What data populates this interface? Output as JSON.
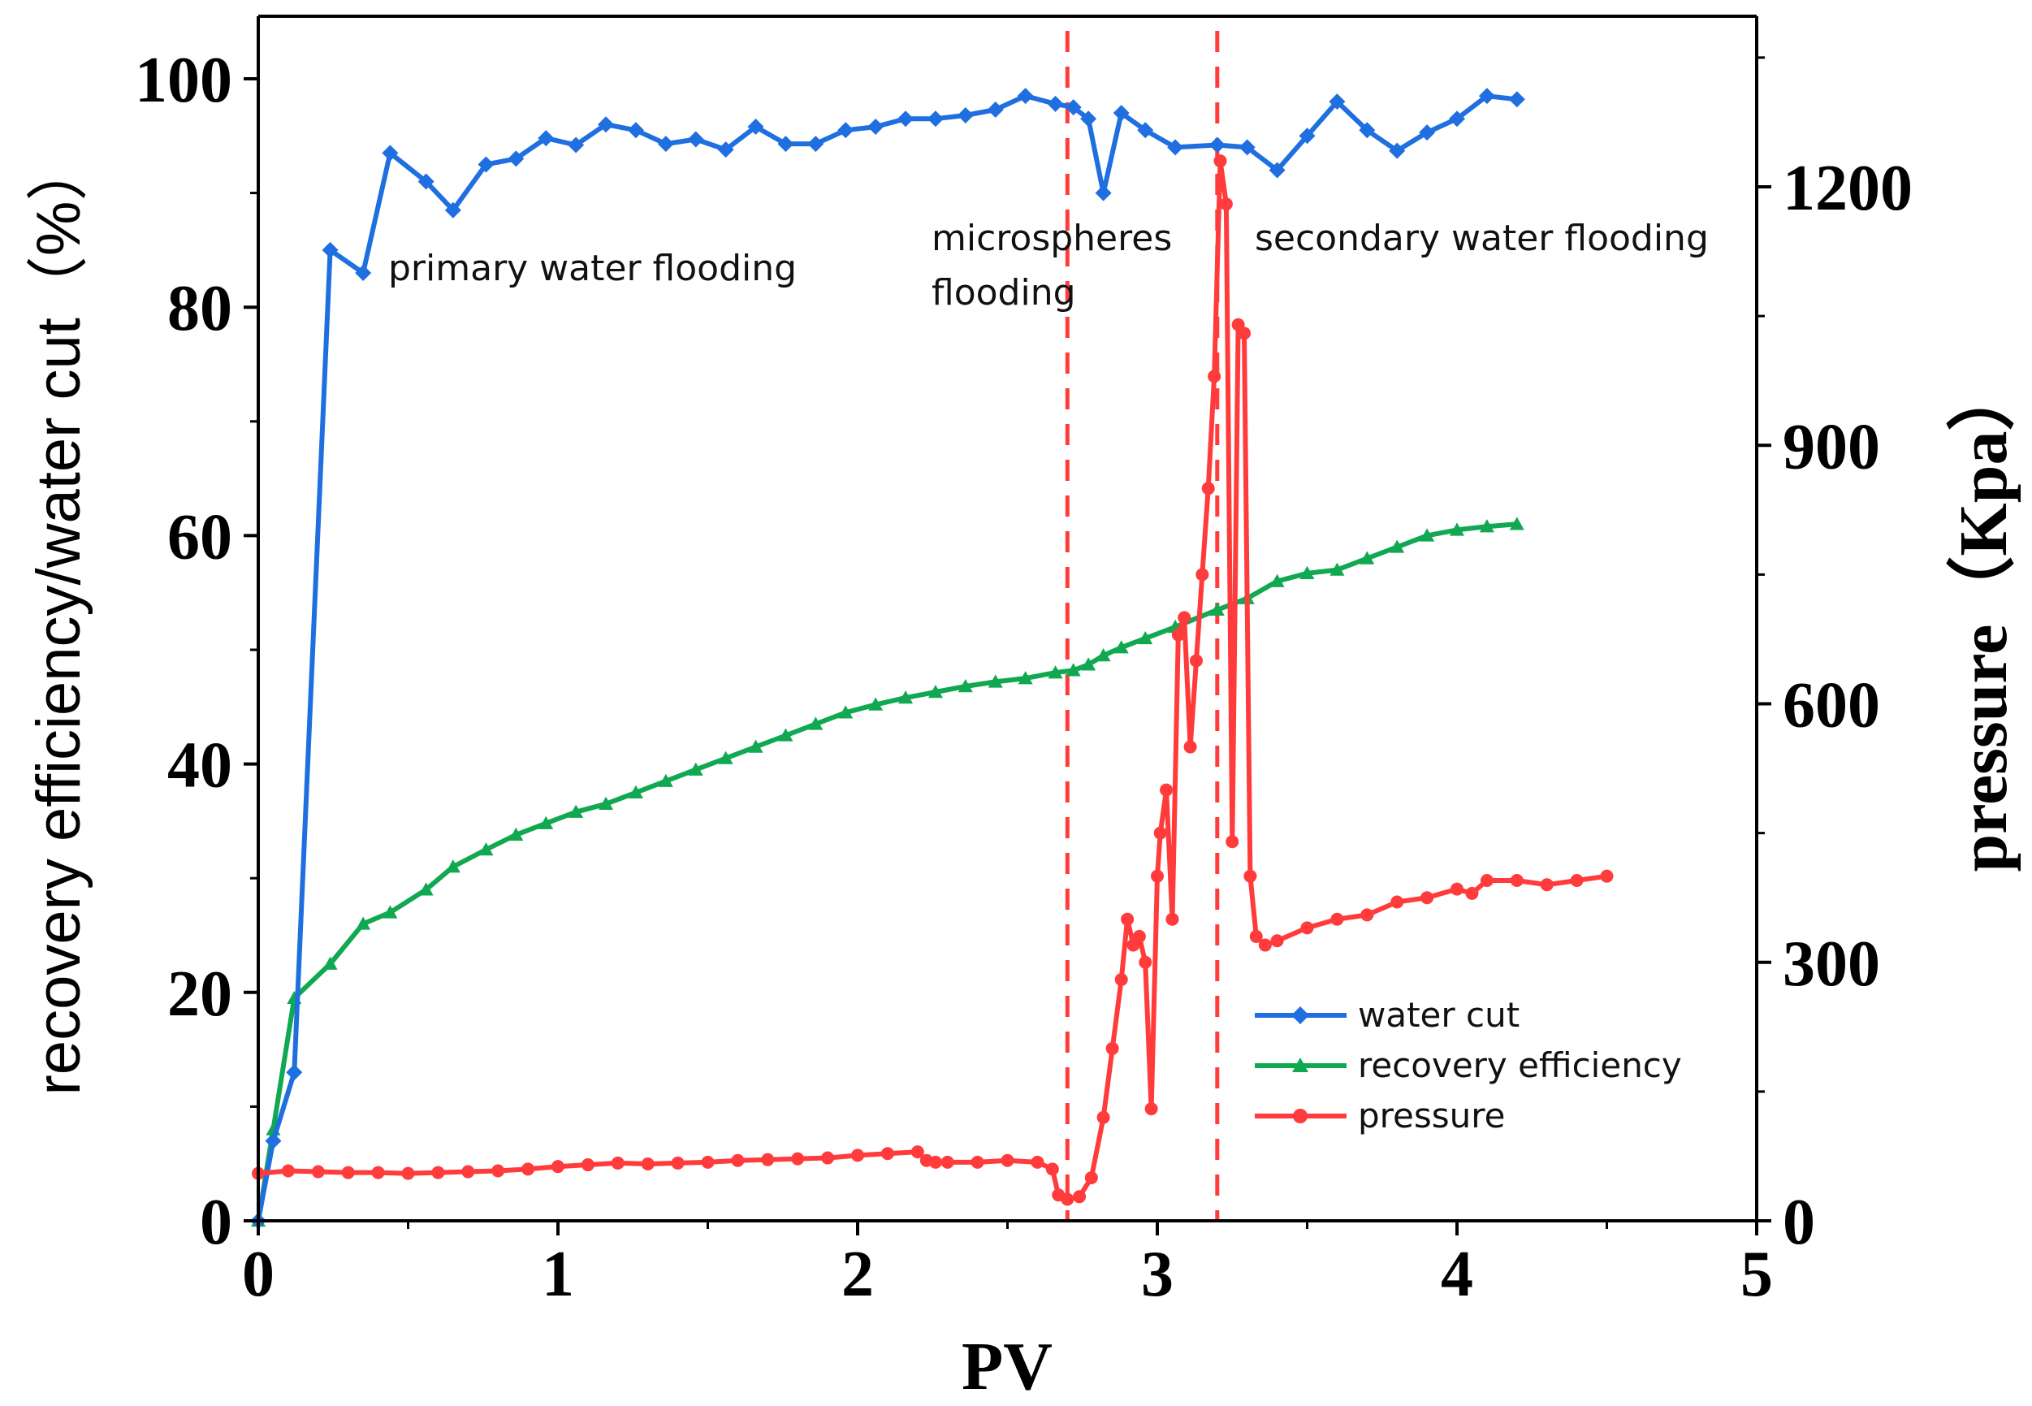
{
  "chart_data": {
    "type": "line",
    "xlabel": "PV",
    "ylabel_left": "recovery efficiency/water cut（%）",
    "ylabel_right": "pressure（Kpa）",
    "xlim": [
      0,
      5
    ],
    "ylim_left": [
      0,
      100
    ],
    "ylim_right": [
      0,
      1400
    ],
    "x_ticks": [
      "0",
      "1",
      "2",
      "3",
      "4",
      "5"
    ],
    "y_left_ticks": [
      "0",
      "20",
      "40",
      "60",
      "80",
      "100"
    ],
    "y_right_ticks": [
      "0",
      "300",
      "600",
      "900",
      "1200"
    ],
    "grid": false,
    "legend_position": "bottom-right",
    "colors": {
      "water_cut": "#1f6fe0",
      "recovery": "#10a850",
      "pressure": "#ff3b3b",
      "divider": "#ff3b3b"
    },
    "dividers": [
      2.7,
      3.2
    ],
    "annotations": [
      "primary water flooding",
      "microspheres",
      "flooding",
      "secondary water flooding"
    ],
    "series": [
      {
        "name": "water cut",
        "axis": "left",
        "marker": "diamond",
        "x": [
          0.0,
          0.05,
          0.12,
          0.24,
          0.35,
          0.44,
          0.56,
          0.65,
          0.76,
          0.86,
          0.96,
          1.06,
          1.16,
          1.26,
          1.36,
          1.46,
          1.56,
          1.66,
          1.76,
          1.86,
          1.96,
          2.06,
          2.16,
          2.26,
          2.36,
          2.46,
          2.56,
          2.66,
          2.72,
          2.77,
          2.82,
          2.88,
          2.96,
          3.06,
          3.2,
          3.3,
          3.4,
          3.5,
          3.6,
          3.7,
          3.8,
          3.9,
          4.0,
          4.1,
          4.2
        ],
        "y": [
          0,
          7,
          13,
          85,
          83,
          93.5,
          91,
          88.5,
          92.5,
          93,
          94.8,
          94.2,
          96,
          95.5,
          94.3,
          94.7,
          93.8,
          95.8,
          94.3,
          94.3,
          95.5,
          95.8,
          96.5,
          96.5,
          96.8,
          97.3,
          98.5,
          97.8,
          97.5,
          96.5,
          90,
          97,
          95.5,
          94,
          94.2,
          94,
          92,
          95,
          98,
          95.5,
          93.7,
          95.3,
          96.5,
          98.5,
          98.2
        ]
      },
      {
        "name": "recovery efficiency",
        "axis": "left",
        "marker": "triangle",
        "x": [
          0.0,
          0.05,
          0.12,
          0.24,
          0.35,
          0.44,
          0.56,
          0.65,
          0.76,
          0.86,
          0.96,
          1.06,
          1.16,
          1.26,
          1.36,
          1.46,
          1.56,
          1.66,
          1.76,
          1.86,
          1.96,
          2.06,
          2.16,
          2.26,
          2.36,
          2.46,
          2.56,
          2.66,
          2.72,
          2.77,
          2.82,
          2.88,
          2.96,
          3.06,
          3.2,
          3.3,
          3.4,
          3.5,
          3.6,
          3.7,
          3.8,
          3.9,
          4.0,
          4.1,
          4.2
        ],
        "y": [
          0,
          8,
          19.5,
          22.5,
          26,
          27,
          29,
          31,
          32.5,
          33.8,
          34.8,
          35.8,
          36.5,
          37.5,
          38.5,
          39.5,
          40.5,
          41.5,
          42.5,
          43.5,
          44.5,
          45.2,
          45.8,
          46.3,
          46.8,
          47.2,
          47.5,
          48,
          48.2,
          48.7,
          49.5,
          50.2,
          51,
          52,
          53.5,
          54.5,
          56,
          56.7,
          57,
          58,
          59,
          60,
          60.5,
          60.8,
          61
        ]
      },
      {
        "name": "pressure",
        "axis": "right",
        "marker": "circle",
        "x": [
          0.0,
          0.1,
          0.2,
          0.3,
          0.4,
          0.5,
          0.6,
          0.7,
          0.8,
          0.9,
          1.0,
          1.1,
          1.2,
          1.3,
          1.4,
          1.5,
          1.6,
          1.7,
          1.8,
          1.9,
          2.0,
          2.1,
          2.2,
          2.23,
          2.26,
          2.3,
          2.4,
          2.5,
          2.6,
          2.65,
          2.67,
          2.7,
          2.74,
          2.78,
          2.82,
          2.85,
          2.88,
          2.9,
          2.92,
          2.94,
          2.96,
          2.98,
          3.0,
          3.01,
          3.03,
          3.05,
          3.07,
          3.09,
          3.11,
          3.13,
          3.15,
          3.17,
          3.19,
          3.21,
          3.23,
          3.25,
          3.27,
          3.29,
          3.31,
          3.33,
          3.36,
          3.4,
          3.5,
          3.6,
          3.7,
          3.8,
          3.9,
          4.0,
          4.05,
          4.1,
          4.2,
          4.3,
          4.4,
          4.5
        ],
        "y": [
          55,
          58,
          57,
          56,
          56,
          55,
          56,
          57,
          58,
          60,
          63,
          65,
          67,
          66,
          67,
          68,
          70,
          71,
          72,
          73,
          76,
          78,
          80,
          70,
          68,
          68,
          68,
          70,
          68,
          60,
          30,
          25,
          28,
          50,
          120,
          200,
          280,
          350,
          320,
          330,
          300,
          130,
          400,
          450,
          500,
          350,
          680,
          700,
          550,
          650,
          750,
          850,
          980,
          1230,
          1180,
          440,
          1040,
          1030,
          400,
          330,
          320,
          325,
          340,
          350,
          355,
          370,
          375,
          385,
          380,
          395,
          395,
          390,
          395,
          400
        ]
      }
    ]
  }
}
